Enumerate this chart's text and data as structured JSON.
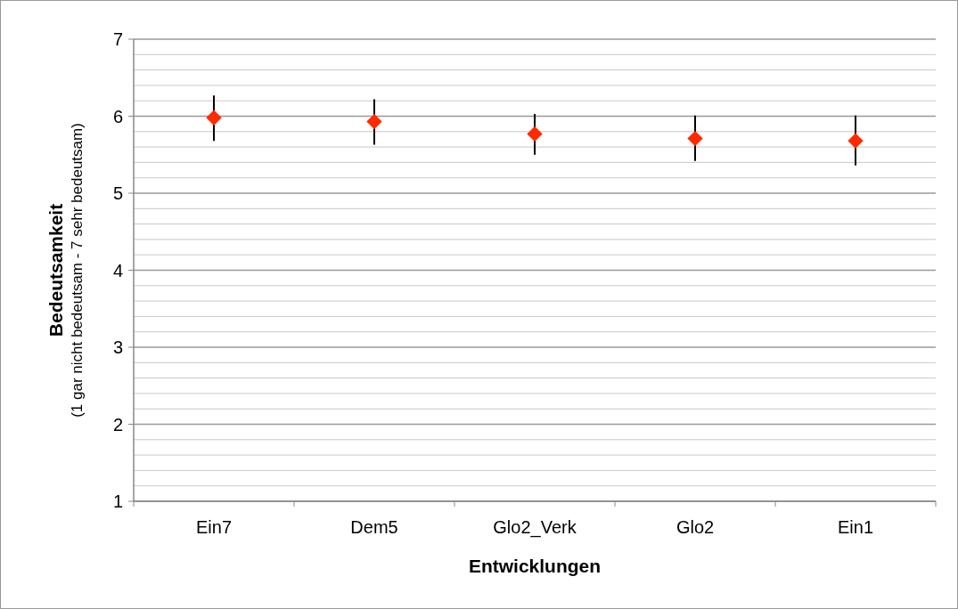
{
  "chart_data": {
    "type": "scatter",
    "xlabel": "Entwicklungen",
    "ylabel": "Bedeutsamkeit",
    "subtitle": "(1 gar nicht bedeutsam - 7 sehr bedeutsam)",
    "categories": [
      "Ein7",
      "Dem5",
      "Glo2_Verk",
      "Glo2",
      "Ein1"
    ],
    "series": [
      {
        "color": "#ff2a00",
        "values": [
          5.98,
          5.93,
          5.77,
          5.71,
          5.68
        ],
        "errors": [
          [
            5.68,
            6.27
          ],
          [
            5.63,
            6.22
          ],
          [
            5.5,
            6.03
          ],
          [
            5.42,
            6.01
          ],
          [
            5.36,
            6.01
          ]
        ]
      }
    ],
    "ylim": [
      1,
      7
    ],
    "yticks": [
      1,
      {
        "value": 1.2,
        "label": null
      },
      {
        "value": 1.4,
        "label": null
      },
      {
        "value": 1.6,
        "label": null
      },
      {
        "value": 1.8,
        "label": null
      },
      2,
      {
        "value": 2.2,
        "label": null
      },
      {
        "value": 2.4,
        "label": null
      },
      {
        "value": 2.6,
        "label": null
      },
      {
        "value": 2.8,
        "label": null
      },
      3,
      {
        "value": 3.2,
        "label": null
      },
      {
        "value": 3.4,
        "label": null
      },
      {
        "value": 3.6,
        "label": null
      },
      {
        "value": 3.8,
        "label": null
      },
      4,
      {
        "value": 4.2,
        "label": null
      },
      {
        "value": 4.4,
        "label": null
      },
      {
        "value": 4.6,
        "label": null
      },
      {
        "value": 4.8,
        "label": null
      },
      5,
      {
        "value": 5.2,
        "label": null
      },
      {
        "value": 5.4,
        "label": null
      },
      {
        "value": 5.6,
        "label": null
      },
      {
        "value": 5.8,
        "label": null
      },
      6,
      {
        "value": 6.2,
        "label": null
      },
      {
        "value": 6.4,
        "label": null
      },
      {
        "value": 6.6,
        "label": null
      },
      {
        "value": 6.8,
        "label": null
      },
      7
    ],
    "grid": "y",
    "marker": "diamond"
  }
}
